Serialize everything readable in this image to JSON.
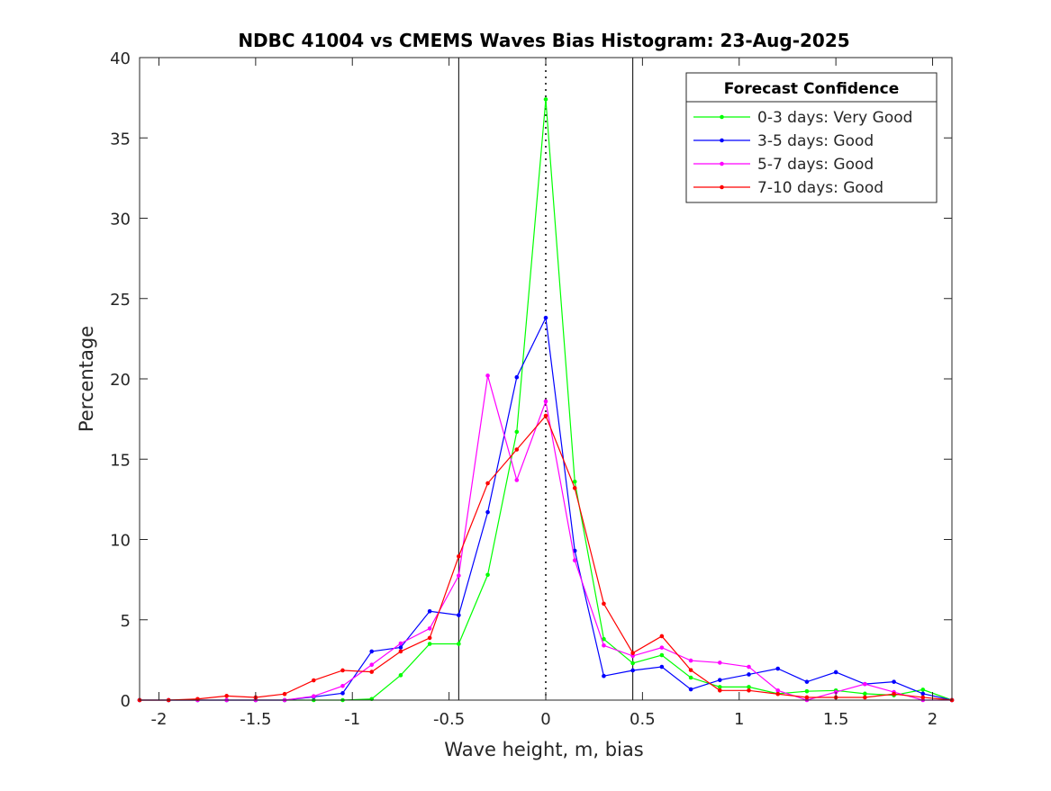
{
  "chart_data": {
    "type": "line",
    "title": "NDBC 41004 vs CMEMS Waves Bias Histogram: 23-Aug-2025",
    "xlabel": "Wave height, m, bias",
    "ylabel": "Percentage",
    "xlim": [
      -2.1,
      2.1
    ],
    "ylim": [
      0,
      40
    ],
    "xticks": [
      -2,
      -1.5,
      -1,
      -0.5,
      0,
      0.5,
      1,
      1.5,
      2
    ],
    "xtick_labels": [
      "-2",
      "-1.5",
      "-1",
      "-0.5",
      "0",
      "0.5",
      "1",
      "1.5",
      "2"
    ],
    "yticks": [
      0,
      5,
      10,
      15,
      20,
      25,
      30,
      35,
      40
    ],
    "ytick_labels": [
      "0",
      "5",
      "10",
      "15",
      "20",
      "25",
      "30",
      "35",
      "40"
    ],
    "grid": false,
    "reference_lines": {
      "solid": [
        -0.45,
        0.45
      ],
      "dotted": [
        0
      ]
    },
    "legend": {
      "title": "Forecast Confidence",
      "placement": "top-right"
    },
    "x": [
      -2.1,
      -1.95,
      -1.8,
      -1.65,
      -1.5,
      -1.35,
      -1.2,
      -1.05,
      -0.9,
      -0.75,
      -0.6,
      -0.45,
      -0.3,
      -0.15,
      0,
      0.15,
      0.3,
      0.45,
      0.6,
      0.75,
      0.9,
      1.05,
      1.2,
      1.35,
      1.5,
      1.65,
      1.8,
      1.95,
      2.1
    ],
    "series": [
      {
        "name": "0-3 days: Very Good",
        "color": "#00ff00",
        "values": [
          0,
          0,
          0,
          0,
          0,
          0,
          0,
          0,
          0.07,
          1.55,
          3.5,
          3.5,
          7.8,
          16.7,
          37.4,
          13.6,
          3.8,
          2.3,
          2.8,
          1.4,
          0.82,
          0.82,
          0.4,
          0.55,
          0.6,
          0.4,
          0.3,
          0.65,
          0
        ]
      },
      {
        "name": "3-5 days: Good",
        "color": "#0000ff",
        "values": [
          0,
          0,
          0,
          0,
          0,
          0,
          0.2,
          0.43,
          3.03,
          3.28,
          5.53,
          5.29,
          11.7,
          20.1,
          23.8,
          9.3,
          1.5,
          1.85,
          2.07,
          0.67,
          1.25,
          1.6,
          1.96,
          1.14,
          1.74,
          1.0,
          1.14,
          0.4,
          0
        ]
      },
      {
        "name": "5-7 days: Good",
        "color": "#ff00ff",
        "values": [
          0,
          0,
          0,
          0,
          0,
          0,
          0.24,
          0.88,
          2.2,
          3.53,
          4.46,
          7.75,
          20.2,
          13.7,
          18.6,
          8.7,
          3.4,
          2.75,
          3.27,
          2.46,
          2.33,
          2.07,
          0.6,
          0,
          0.5,
          1.0,
          0.5,
          0,
          0
        ]
      },
      {
        "name": "7-10 days: Good",
        "color": "#ff0000",
        "values": [
          0,
          0,
          0.07,
          0.26,
          0.17,
          0.38,
          1.23,
          1.85,
          1.76,
          3.03,
          3.87,
          8.95,
          13.5,
          15.6,
          17.7,
          13.2,
          6.0,
          2.93,
          3.98,
          1.87,
          0.6,
          0.6,
          0.38,
          0.17,
          0.17,
          0.17,
          0.38,
          0.17,
          0
        ]
      }
    ]
  }
}
